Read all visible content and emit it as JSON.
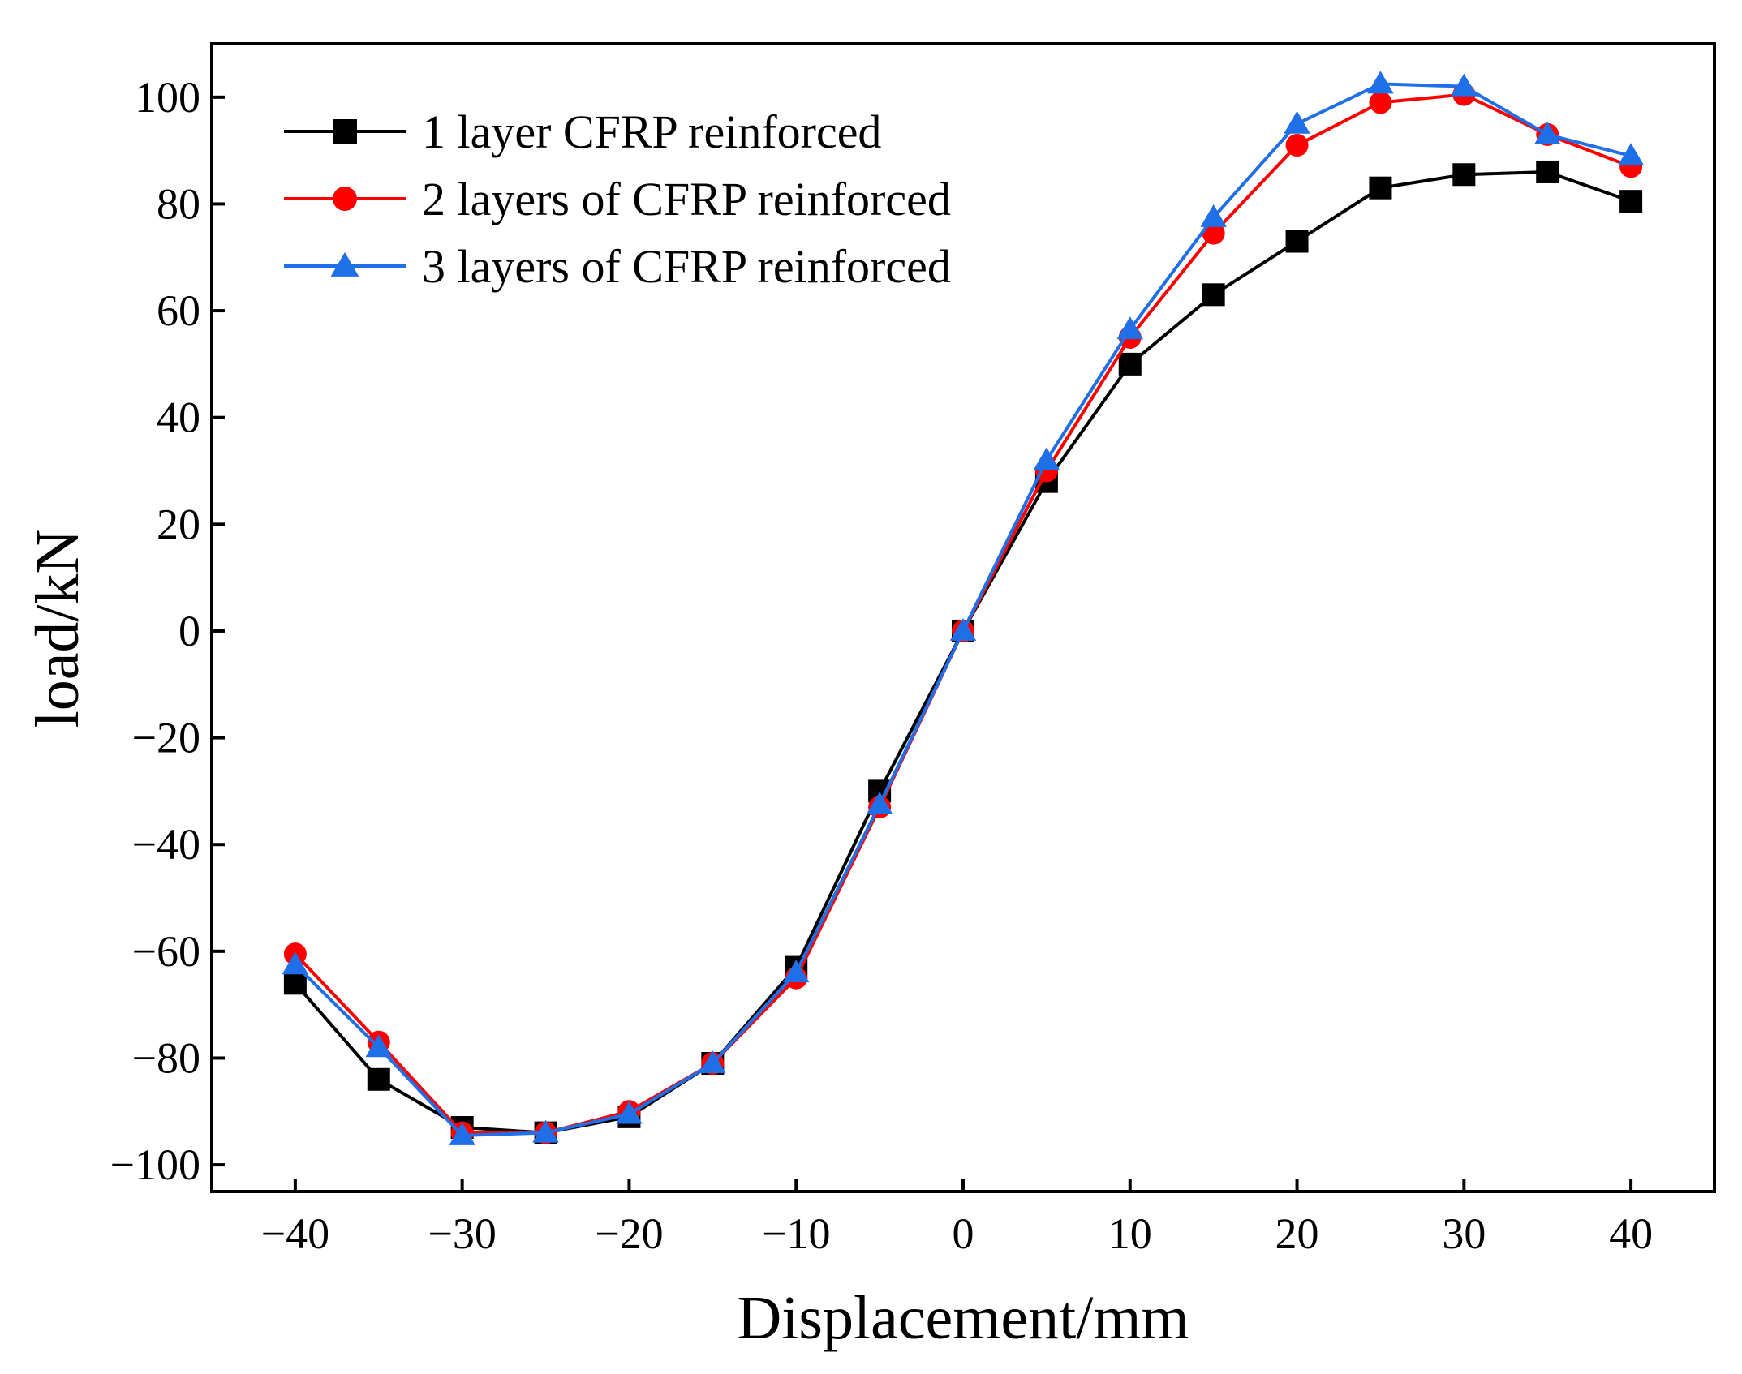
{
  "chart_data": {
    "type": "line",
    "title": "",
    "xlabel": "Displacement/mm",
    "ylabel": "load/kN",
    "xlim": [
      -45,
      45
    ],
    "ylim": [
      -105,
      110
    ],
    "xticks": [
      -40,
      -30,
      -20,
      -10,
      0,
      10,
      20,
      30,
      40
    ],
    "yticks": [
      -100,
      -80,
      -60,
      -40,
      -20,
      0,
      20,
      40,
      60,
      80,
      100
    ],
    "grid": false,
    "legend_position": "top-left",
    "x": [
      -40,
      -35,
      -30,
      -25,
      -20,
      -15,
      -10,
      -5,
      0,
      5,
      10,
      15,
      20,
      25,
      30,
      35,
      40
    ],
    "series": [
      {
        "name": "1 layer CFRP reinforced",
        "color": "#000000",
        "marker": "square",
        "values": [
          -66,
          -84,
          -93,
          -94,
          -91,
          -81,
          -63,
          -30,
          0,
          28,
          50,
          63,
          73,
          83,
          85.5,
          86,
          80.5
        ]
      },
      {
        "name": "2 layers of CFRP reinforced",
        "color": "#ff0000",
        "marker": "circle",
        "values": [
          -60.5,
          -77,
          -94,
          -94,
          -90,
          -81,
          -65,
          -33,
          0,
          30,
          55,
          74.5,
          91,
          99,
          100.5,
          93,
          87
        ]
      },
      {
        "name": "3 layers of CFRP reinforced",
        "color": "#1f6fe8",
        "marker": "triangle",
        "values": [
          -62.5,
          -78,
          -94.5,
          -94,
          -90.5,
          -81,
          -64,
          -32.5,
          0,
          32,
          56.5,
          77.5,
          95,
          102.5,
          102,
          93,
          89
        ]
      }
    ]
  }
}
